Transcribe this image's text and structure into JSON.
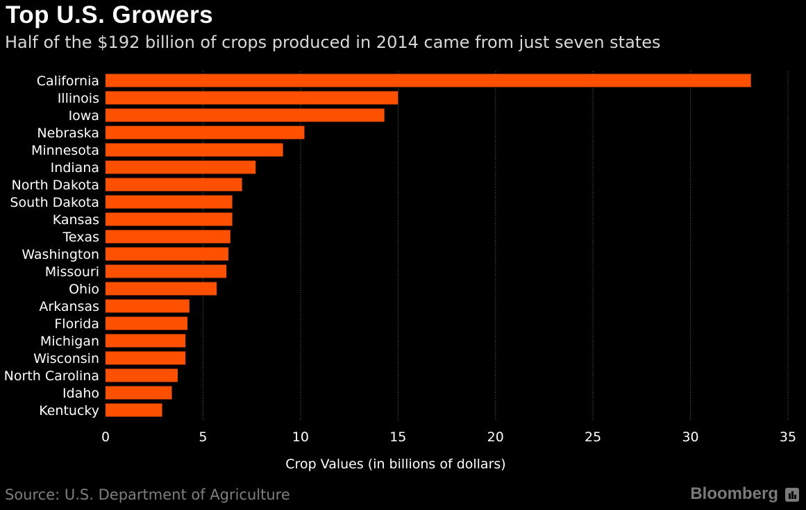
{
  "header": {
    "title": "Top U.S. Growers",
    "subtitle": "Half of the $192 billion of crops produced in 2014 came from just seven states"
  },
  "footer": {
    "source": "Source: U.S. Department of Agriculture",
    "brand": "Bloomberg"
  },
  "colors": {
    "bar": "#ff5000",
    "grid": "#666666",
    "background": "#000000",
    "text": "#ffffff"
  },
  "chart_data": {
    "type": "bar",
    "orientation": "horizontal",
    "title": "Top U.S. Growers",
    "subtitle": "Half of the $192 billion of crops produced in 2014 came from just seven states",
    "xlabel": "Crop Values (in billions of dollars)",
    "ylabel": "",
    "xlim": [
      0,
      35
    ],
    "xticks": [
      0,
      5,
      10,
      15,
      20,
      25,
      30,
      35
    ],
    "grid": true,
    "categories": [
      "California",
      "Illinois",
      "Iowa",
      "Nebraska",
      "Minnesota",
      "Indiana",
      "North Dakota",
      "South Dakota",
      "Kansas",
      "Texas",
      "Washington",
      "Missouri",
      "Ohio",
      "Arkansas",
      "Florida",
      "Michigan",
      "Wisconsin",
      "North Carolina",
      "Idaho",
      "Kentucky"
    ],
    "values": [
      33.1,
      15.0,
      14.3,
      10.2,
      9.1,
      7.7,
      7.0,
      6.5,
      6.5,
      6.4,
      6.3,
      6.2,
      5.7,
      4.3,
      4.2,
      4.1,
      4.1,
      3.7,
      3.4,
      2.9
    ]
  }
}
